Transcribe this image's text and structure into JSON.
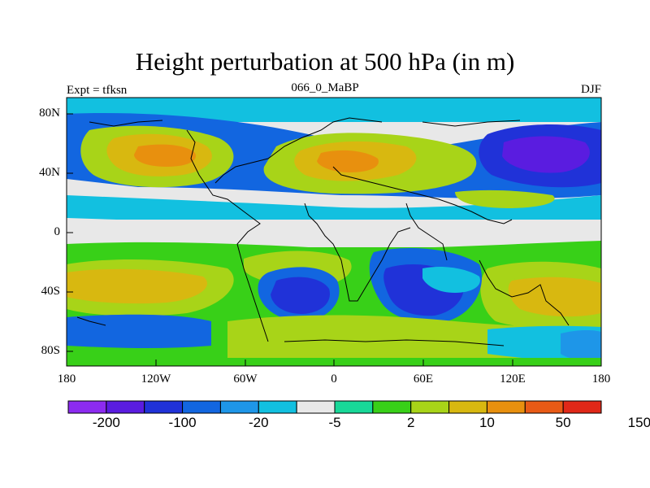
{
  "title": "Height perturbation at 500 hPa (in m)",
  "subtitle_left": "Expt = tfksn",
  "subtitle_center": "066_0_MaBP",
  "subtitle_right": "DJF",
  "lat_labels": [
    "80N",
    "40N",
    "0",
    "40S",
    "80S"
  ],
  "lon_labels": [
    "180",
    "120W",
    "60W",
    "0",
    "60E",
    "120E",
    "180"
  ],
  "colorbar": {
    "colors": [
      "#8c2bf0",
      "#5a1ce0",
      "#2032d8",
      "#1266e0",
      "#1e96e8",
      "#12c0e0",
      "#e8e8e8",
      "#18d898",
      "#38d018",
      "#a8d418",
      "#d8b810",
      "#e8900e",
      "#e85a16",
      "#e02818"
    ],
    "labels": [
      "-200",
      "-100",
      "-20",
      "-5",
      "2",
      "10",
      "50",
      "150"
    ]
  },
  "map": {
    "background": "#e8e8e8",
    "lat_range": [
      -90,
      90
    ],
    "lon_range": [
      -180,
      180
    ]
  }
}
